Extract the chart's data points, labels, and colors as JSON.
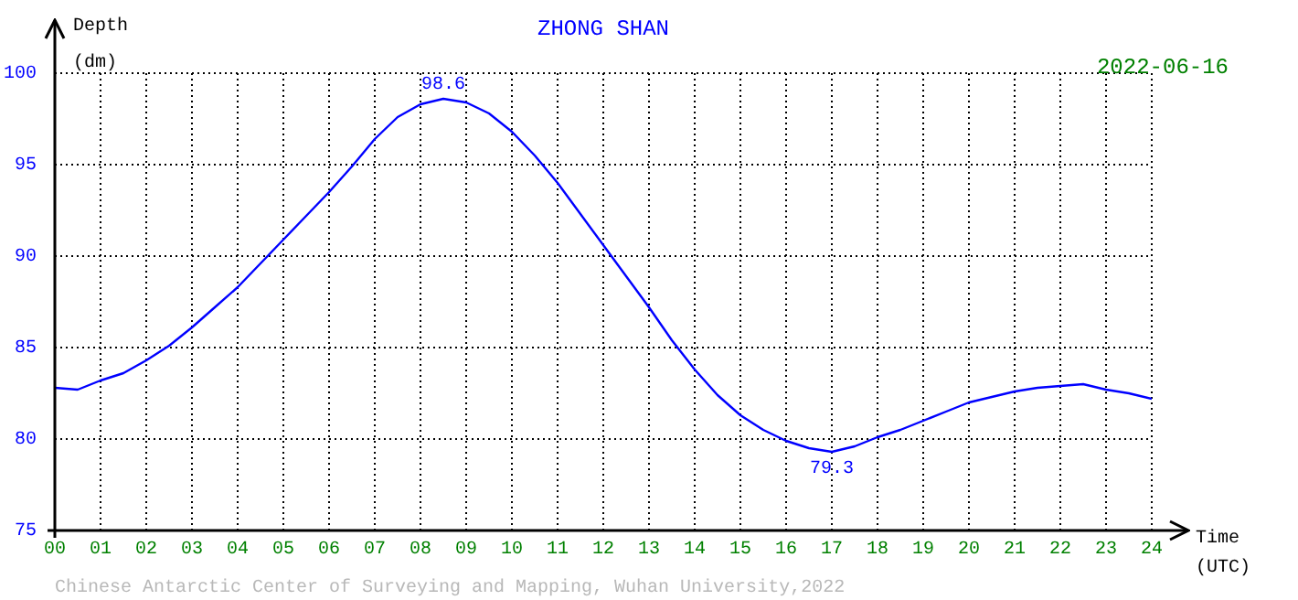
{
  "chart_data": {
    "type": "line",
    "title": "ZHONG SHAN",
    "xlabel": "Time (UTC)",
    "ylabel": "Depth (dm)",
    "x": [
      0,
      0.5,
      1,
      1.5,
      2,
      2.5,
      3,
      3.5,
      4,
      4.5,
      5,
      5.5,
      6,
      6.5,
      7,
      7.5,
      8,
      8.5,
      9,
      9.5,
      10,
      10.5,
      11,
      11.5,
      12,
      12.5,
      13,
      13.5,
      14,
      14.5,
      15,
      15.5,
      16,
      16.5,
      17,
      17.5,
      18,
      18.5,
      19,
      19.5,
      20,
      20.5,
      21,
      21.5,
      22,
      22.5,
      23,
      23.5,
      24
    ],
    "series": [
      {
        "color": "#0000ff",
        "values": [
          82.8,
          82.7,
          83.2,
          83.6,
          84.3,
          85.1,
          86.1,
          87.2,
          88.3,
          89.6,
          90.9,
          92.2,
          93.5,
          94.9,
          96.4,
          97.6,
          98.3,
          98.6,
          98.4,
          97.8,
          96.8,
          95.5,
          94.0,
          92.3,
          90.6,
          88.9,
          87.2,
          85.4,
          83.8,
          82.4,
          81.3,
          80.5,
          79.9,
          79.5,
          79.3,
          79.6,
          80.1,
          80.5,
          81.0,
          81.5,
          82.0,
          82.3,
          82.6,
          82.8,
          82.9,
          83.0,
          82.7,
          82.5,
          82.2
        ]
      }
    ],
    "xlim": [
      0,
      24
    ],
    "xticks": [
      {
        "value": 0,
        "label": "00"
      },
      {
        "value": 1,
        "label": "01"
      },
      {
        "value": 2,
        "label": "02"
      },
      {
        "value": 3,
        "label": "03"
      },
      {
        "value": 4,
        "label": "04"
      },
      {
        "value": 5,
        "label": "05"
      },
      {
        "value": 6,
        "label": "06"
      },
      {
        "value": 7,
        "label": "07"
      },
      {
        "value": 8,
        "label": "08"
      },
      {
        "value": 9,
        "label": "09"
      },
      10,
      11,
      12,
      13,
      14,
      15,
      16,
      17,
      18,
      19,
      20,
      21,
      22,
      23,
      24
    ],
    "ylim": [
      75,
      100
    ],
    "yticks": [
      75,
      80,
      85,
      90,
      95,
      100
    ],
    "grid": true,
    "legend": false,
    "marker": "none",
    "line_style": "solid",
    "annotations": [
      {
        "text": "98.6",
        "x": 8.5,
        "y": 98.6
      },
      {
        "text": "79.3",
        "x": 17,
        "y": 79.3
      },
      "2022-06-16",
      "Chinese Antarctic Center of Surveying and Mapping, Wuhan University,2022"
    ]
  }
}
